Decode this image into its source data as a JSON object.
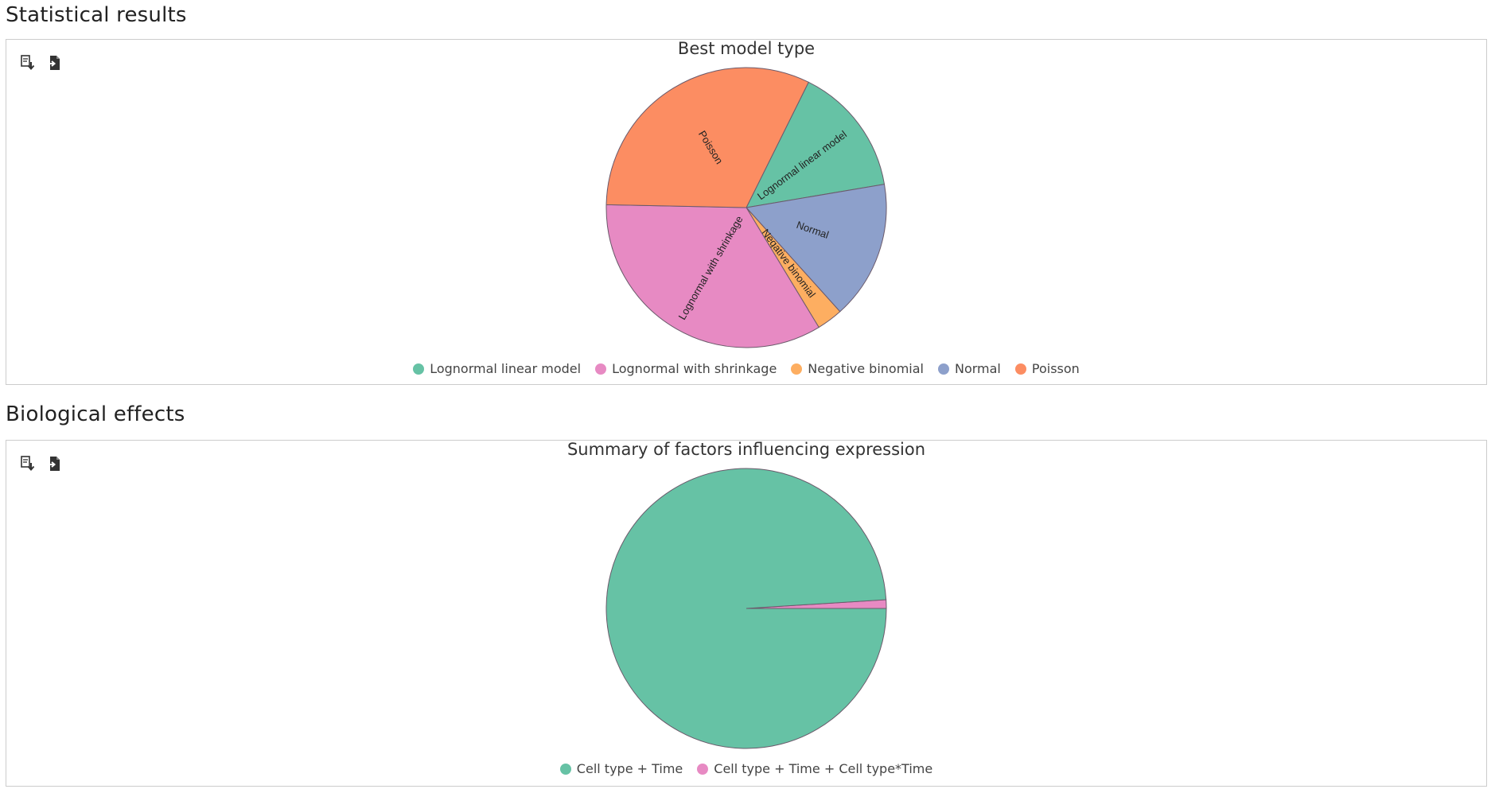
{
  "sections": [
    {
      "title": "Statistical results"
    },
    {
      "title": "Biological effects"
    }
  ],
  "toolbar": {
    "icons": [
      "export-image-icon",
      "export-data-icon"
    ]
  },
  "chart_data": [
    {
      "type": "pie",
      "title": "Best model type",
      "slices": [
        {
          "label": "Lognormal linear model",
          "value": 15,
          "color": "#66c2a5",
          "slice_label": "Lognormal linear model"
        },
        {
          "label": "Normal",
          "value": 16,
          "color": "#8da0cb",
          "slice_label": "Normal"
        },
        {
          "label": "Negative binomial",
          "value": 3,
          "color": "#fdae61",
          "slice_label": "Negative binomial"
        },
        {
          "label": "Lognormal with shrinkage",
          "value": 34,
          "color": "#e78ac3",
          "slice_label": "Lognormal with shrinkage"
        },
        {
          "label": "Poisson",
          "value": 32,
          "color": "#fc8d62",
          "slice_label": "Poisson"
        }
      ],
      "legend": [
        "Lognormal linear model",
        "Lognormal with shrinkage",
        "Negative binomial",
        "Normal",
        "Poisson"
      ],
      "legend_position": "bottom"
    },
    {
      "type": "pie",
      "title": "Summary of factors influencing expression",
      "slices": [
        {
          "label": "Cell type + Time + Cell type*Time",
          "value": 1,
          "color": "#e78ac3",
          "slice_label": ""
        },
        {
          "label": "Cell type + Time",
          "value": 99,
          "color": "#66c2a5",
          "slice_label": ""
        }
      ],
      "legend": [
        "Cell type + Time",
        "Cell type + Time + Cell type*Time"
      ],
      "legend_position": "bottom"
    }
  ]
}
